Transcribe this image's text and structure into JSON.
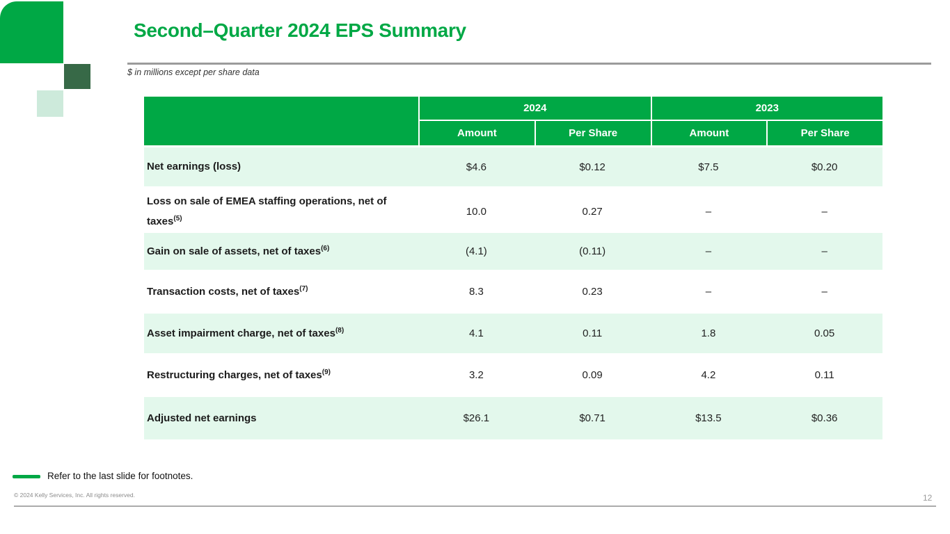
{
  "slide": {
    "title": "Second–Quarter 2024 EPS Summary",
    "subtitle": "$ in millions except per share data",
    "page_number": "12"
  },
  "table": {
    "column_groups": [
      {
        "label": "2024"
      },
      {
        "label": "2023"
      }
    ],
    "sub_headers": [
      "Amount",
      "Per Share",
      "Amount",
      "Per Share"
    ],
    "rows": [
      {
        "label": "Net earnings (loss)",
        "sup": "",
        "values": [
          "$4.6",
          "$0.12",
          "$7.5",
          "$0.20"
        ]
      },
      {
        "label": "Loss on sale of EMEA staffing operations, net of taxes",
        "sup": "(5)",
        "values": [
          "10.0",
          "0.27",
          "–",
          "–"
        ]
      },
      {
        "label": "Gain on sale of assets, net of taxes",
        "sup": "(6)",
        "values": [
          "(4.1)",
          "(0.11)",
          "–",
          "–"
        ]
      },
      {
        "label": "Transaction costs, net of taxes",
        "sup": "(7)",
        "values": [
          "8.3",
          "0.23",
          "–",
          "–"
        ]
      },
      {
        "label": "Asset impairment charge, net of taxes",
        "sup": "(8)",
        "values": [
          "4.1",
          "0.11",
          "1.8",
          "0.05"
        ]
      },
      {
        "label": "Restructuring charges, net of taxes",
        "sup": "(9)",
        "values": [
          "3.2",
          "0.09",
          "4.2",
          "0.11"
        ]
      },
      {
        "label": "Adjusted net earnings",
        "sup": "",
        "values": [
          "$26.1",
          "$0.71",
          "$13.5",
          "$0.36"
        ]
      }
    ]
  },
  "footer": {
    "footnote": "Refer to the last slide for footnotes.",
    "copyright": "© 2024 Kelly Services, Inc. All rights reserved."
  },
  "colors": {
    "kelly_green": "#00A845",
    "mint": "#E3F8EC",
    "dark_green": "#376947",
    "pale_green": "#CDEADB",
    "rule_gray": "#9B9B9B",
    "text_dark": "#1C1C1C",
    "muted_gray": "#8B8B8B"
  }
}
